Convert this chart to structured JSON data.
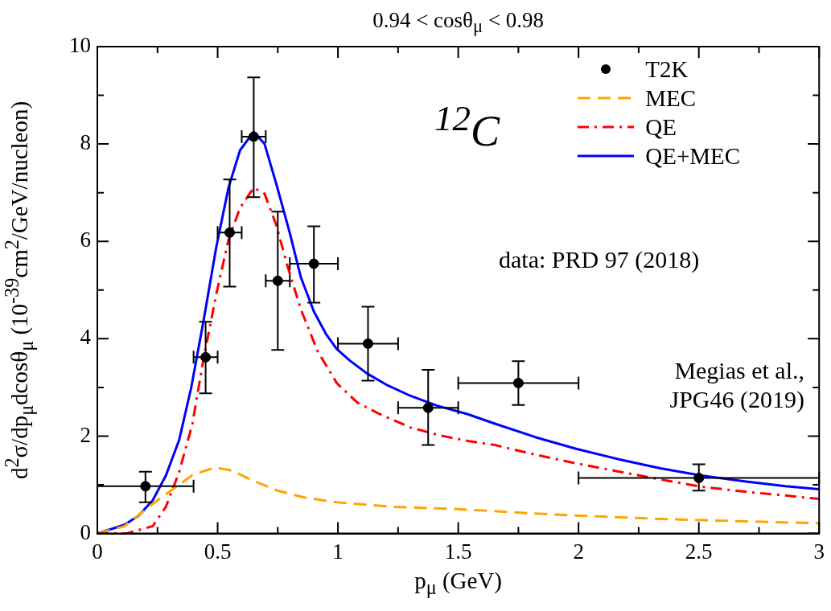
{
  "chart_data": {
    "type": "line",
    "title": "0.94 < cosθ$_{μ}$ < 0.98",
    "xlabel": "p$_{μ}$ (GeV)",
    "ylabel": "d$^{2}$σ/dp$_{μ}$dcosθ$_{μ}$ (10$^{-39}$cm$^{2}$/GeV/nucleon)",
    "annotations": [
      "$^{12}$C",
      "data: PRD 97 (2018)",
      "Megias et al., JPG46 (2019)"
    ],
    "xlim": [
      0,
      3
    ],
    "xticks": [
      0,
      {
        "value": 0.25,
        "label": null
      },
      0.5,
      {
        "value": 0.75,
        "label": null
      },
      1,
      {
        "value": 1.25,
        "label": null
      },
      1.5,
      {
        "value": 1.75,
        "label": null
      },
      2,
      {
        "value": 2.25,
        "label": null
      },
      2.5,
      {
        "value": 2.75,
        "label": null
      },
      3
    ],
    "ylim": [
      0,
      10
    ],
    "yticks": [
      0,
      {
        "value": 1,
        "label": null
      },
      2,
      {
        "value": 3,
        "label": null
      },
      4,
      {
        "value": 5,
        "label": null
      },
      6,
      {
        "value": 7,
        "label": null
      },
      8,
      {
        "value": 9,
        "label": null
      },
      10
    ],
    "legend": "top right",
    "series": [
      {
        "name": "T2K",
        "type": "scatter",
        "color": "#000000",
        "marker": "circle",
        "x": [
          0.2,
          0.45,
          0.55,
          0.65,
          0.75,
          0.9,
          1.125,
          1.375,
          1.75,
          2.5
        ],
        "values": [
          0.97,
          3.62,
          6.18,
          8.15,
          5.19,
          5.54,
          3.9,
          2.58,
          3.09,
          1.14
        ],
        "errors": [
          [
            0.64,
            1.27
          ],
          [
            2.88,
            4.35
          ],
          [
            5.07,
            7.27
          ],
          [
            6.91,
            9.37
          ],
          [
            3.77,
            6.61
          ],
          [
            4.74,
            6.31
          ],
          [
            3.14,
            4.66
          ],
          [
            1.82,
            3.36
          ],
          [
            2.64,
            3.54
          ],
          [
            0.88,
            1.42
          ]
        ],
        "xerrors": [
          [
            0,
            0.4
          ],
          [
            0.4,
            0.5
          ],
          [
            0.5,
            0.6
          ],
          [
            0.6,
            0.7
          ],
          [
            0.7,
            0.8
          ],
          [
            0.8,
            1.0
          ],
          [
            1.0,
            1.25
          ],
          [
            1.25,
            1.5
          ],
          [
            1.5,
            2.0
          ],
          [
            2.0,
            3.0
          ]
        ]
      },
      {
        "name": "MEC",
        "color": "#ffa500",
        "line_style": "dashed",
        "x": [
          0,
          0.113,
          0.23,
          0.34,
          0.395,
          0.49,
          0.56,
          0.64,
          0.75,
          0.86,
          0.995,
          1.22,
          1.5,
          1.82,
          1.99,
          2.34,
          2.69,
          3.0
        ],
        "values": [
          0,
          0.15,
          0.61,
          1.0,
          1.2,
          1.36,
          1.29,
          1.1,
          0.88,
          0.74,
          0.64,
          0.55,
          0.5,
          0.41,
          0.37,
          0.3,
          0.25,
          0.21
        ]
      },
      {
        "name": "QE",
        "color": "#ff0000",
        "line_style": "dashdot",
        "x": [
          0,
          0.12,
          0.23,
          0.285,
          0.34,
          0.395,
          0.44,
          0.495,
          0.545,
          0.593,
          0.65,
          0.695,
          0.742,
          0.79,
          0.846,
          0.915,
          0.995,
          1.08,
          1.175,
          1.3,
          1.42,
          1.54,
          1.65,
          1.82,
          1.99,
          2.17,
          2.34,
          2.51,
          2.69,
          2.86,
          3.0
        ],
        "values": [
          0,
          0.0,
          0.15,
          0.55,
          1.26,
          2.25,
          3.55,
          4.93,
          6.03,
          6.69,
          7.1,
          6.98,
          6.36,
          5.5,
          4.6,
          3.75,
          3.09,
          2.69,
          2.45,
          2.18,
          2.02,
          1.9,
          1.82,
          1.62,
          1.44,
          1.27,
          1.11,
          0.96,
          0.86,
          0.78,
          0.71
        ]
      },
      {
        "name": "QE+MEC",
        "color": "#0000ff",
        "line_style": "solid",
        "x": [
          0,
          0.113,
          0.17,
          0.23,
          0.285,
          0.34,
          0.39,
          0.44,
          0.495,
          0.545,
          0.593,
          0.65,
          0.695,
          0.745,
          0.8,
          0.846,
          0.9,
          0.95,
          0.995,
          1.05,
          1.12,
          1.2,
          1.3,
          1.41,
          1.54,
          1.65,
          1.82,
          1.99,
          2.17,
          2.34,
          2.51,
          2.69,
          2.86,
          3.0
        ],
        "values": [
          0,
          0.18,
          0.36,
          0.68,
          1.19,
          1.92,
          2.99,
          4.33,
          5.9,
          7.1,
          7.87,
          8.25,
          8.0,
          7.16,
          6.17,
          5.26,
          4.56,
          4.1,
          3.79,
          3.55,
          3.29,
          3.06,
          2.83,
          2.63,
          2.45,
          2.26,
          1.98,
          1.74,
          1.52,
          1.34,
          1.19,
          1.07,
          0.97,
          0.91
        ]
      }
    ]
  }
}
